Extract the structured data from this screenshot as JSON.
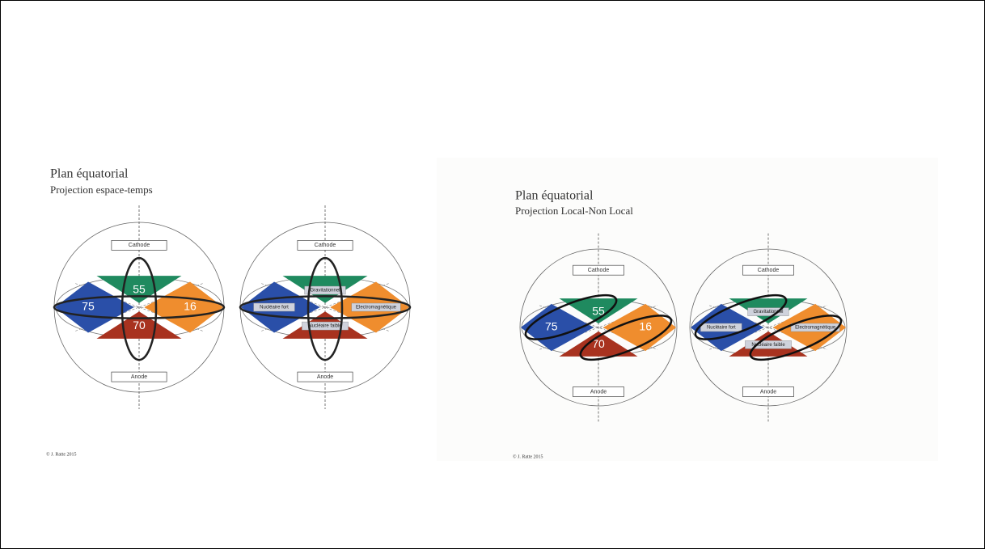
{
  "panels": [
    {
      "title": "Plan équatorial",
      "subtitle": "Projection espace-temps",
      "spheres": [
        {
          "top": "Cathode",
          "bottom": "Anode",
          "labels": [
            55,
            75,
            16,
            70
          ]
        },
        {
          "top": "Cathode",
          "bottom": "Anode",
          "labels": [
            "Gravitationnel",
            "Nucléaire fort",
            "Electromagnétique",
            "Nucléaire faible"
          ]
        }
      ],
      "copyright": "© J. Ratte 2015"
    },
    {
      "title": "Plan équatorial",
      "subtitle": "Projection Local-Non Local",
      "spheres": [
        {
          "top": "Cathode",
          "bottom": "Anode",
          "labels": [
            55,
            75,
            16,
            70
          ]
        },
        {
          "top": "Cathode",
          "bottom": "Anode",
          "labels": [
            "Gravitationnel",
            "Nucléaire fort",
            "Electromagnétique",
            "Nucléaire faible"
          ]
        }
      ],
      "copyright": "© J. Ratte 2015"
    }
  ]
}
